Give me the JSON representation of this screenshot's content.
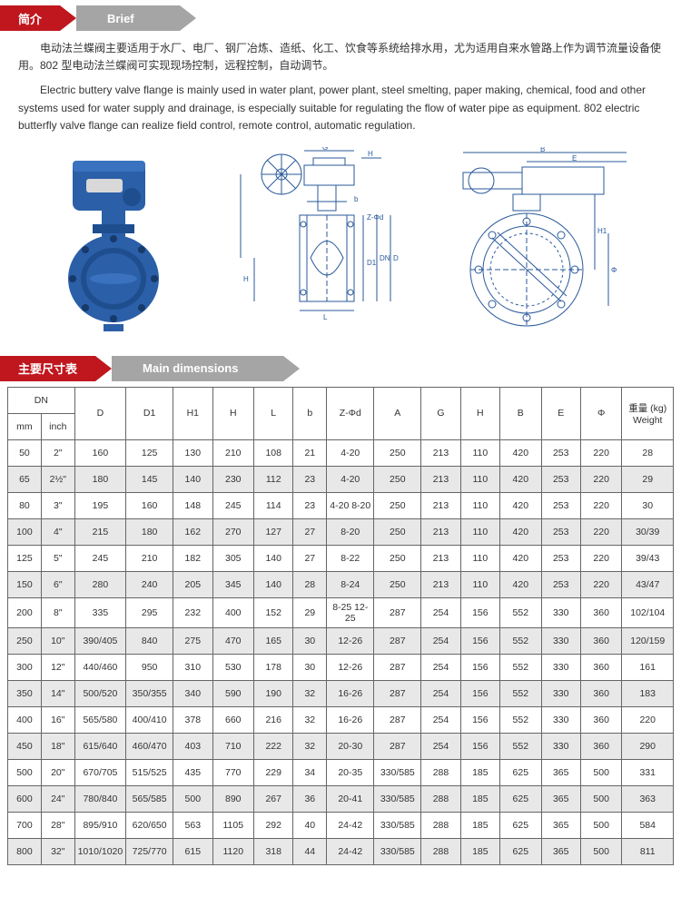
{
  "header1": {
    "cn": "简介",
    "en": "Brief"
  },
  "para_cn": "电动法兰蝶阀主要适用于水厂、电厂、钢厂冶炼、造纸、化工、饮食等系统给排水用，尤为适用自来水管路上作为调节流量设备使用。802 型电动法兰蝶阀可实现现场控制，远程控制，自动调节。",
  "para_en": "Electric buttery valve flange is mainly used in water plant, power plant, steel smelting, paper making, chemical, food and other systems used for water supply and drainage, is especially suitable for regulating the flow of water pipe as equipment. 802 electric butterfly valve flange can realize field control, remote control, automatic regulation.",
  "header2": {
    "cn": "主要尺寸表",
    "en": "Main dimensions"
  },
  "table": {
    "columns_top": [
      "DN",
      "D",
      "D1",
      "H1",
      "H",
      "L",
      "b",
      "Z-Φd",
      "A",
      "G",
      "H",
      "B",
      "E",
      "Φ",
      "重量 (kg) Weight"
    ],
    "dn_sub": [
      "mm",
      "inch"
    ],
    "rows": [
      [
        "50",
        "2\"",
        "160",
        "125",
        "130",
        "210",
        "108",
        "21",
        "4-20",
        "250",
        "213",
        "110",
        "420",
        "253",
        "220",
        "28"
      ],
      [
        "65",
        "2½\"",
        "180",
        "145",
        "140",
        "230",
        "112",
        "23",
        "4-20",
        "250",
        "213",
        "110",
        "420",
        "253",
        "220",
        "29"
      ],
      [
        "80",
        "3\"",
        "195",
        "160",
        "148",
        "245",
        "114",
        "23",
        "4-20 8-20",
        "250",
        "213",
        "110",
        "420",
        "253",
        "220",
        "30"
      ],
      [
        "100",
        "4\"",
        "215",
        "180",
        "162",
        "270",
        "127",
        "27",
        "8-20",
        "250",
        "213",
        "110",
        "420",
        "253",
        "220",
        "30/39"
      ],
      [
        "125",
        "5\"",
        "245",
        "210",
        "182",
        "305",
        "140",
        "27",
        "8-22",
        "250",
        "213",
        "110",
        "420",
        "253",
        "220",
        "39/43"
      ],
      [
        "150",
        "6\"",
        "280",
        "240",
        "205",
        "345",
        "140",
        "28",
        "8-24",
        "250",
        "213",
        "110",
        "420",
        "253",
        "220",
        "43/47"
      ],
      [
        "200",
        "8\"",
        "335",
        "295",
        "232",
        "400",
        "152",
        "29",
        "8-25 12-25",
        "287",
        "254",
        "156",
        "552",
        "330",
        "360",
        "102/104"
      ],
      [
        "250",
        "10\"",
        "390/405",
        "840",
        "275",
        "470",
        "165",
        "30",
        "12-26",
        "287",
        "254",
        "156",
        "552",
        "330",
        "360",
        "120/159"
      ],
      [
        "300",
        "12\"",
        "440/460",
        "950",
        "310",
        "530",
        "178",
        "30",
        "12-26",
        "287",
        "254",
        "156",
        "552",
        "330",
        "360",
        "161"
      ],
      [
        "350",
        "14\"",
        "500/520",
        "350/355",
        "340",
        "590",
        "190",
        "32",
        "16-26",
        "287",
        "254",
        "156",
        "552",
        "330",
        "360",
        "183"
      ],
      [
        "400",
        "16\"",
        "565/580",
        "400/410",
        "378",
        "660",
        "216",
        "32",
        "16-26",
        "287",
        "254",
        "156",
        "552",
        "330",
        "360",
        "220"
      ],
      [
        "450",
        "18\"",
        "615/640",
        "460/470",
        "403",
        "710",
        "222",
        "32",
        "20-30",
        "287",
        "254",
        "156",
        "552",
        "330",
        "360",
        "290"
      ],
      [
        "500",
        "20\"",
        "670/705",
        "515/525",
        "435",
        "770",
        "229",
        "34",
        "20-35",
        "330/585",
        "288",
        "185",
        "625",
        "365",
        "500",
        "331"
      ],
      [
        "600",
        "24\"",
        "780/840",
        "565/585",
        "500",
        "890",
        "267",
        "36",
        "20-41",
        "330/585",
        "288",
        "185",
        "625",
        "365",
        "500",
        "363"
      ],
      [
        "700",
        "28\"",
        "895/910",
        "620/650",
        "563",
        "1105",
        "292",
        "40",
        "24-42",
        "330/585",
        "288",
        "185",
        "625",
        "365",
        "500",
        "584"
      ],
      [
        "800",
        "32\"",
        "1010/1020",
        "725/770",
        "615",
        "1120",
        "318",
        "44",
        "24-42",
        "330/585",
        "288",
        "185",
        "625",
        "365",
        "500",
        "811"
      ]
    ]
  },
  "colors": {
    "red": "#c0171e",
    "grey": "#a5a5a5",
    "valve_blue": "#2b5fa8",
    "drawing_line": "#2a5a9a"
  }
}
